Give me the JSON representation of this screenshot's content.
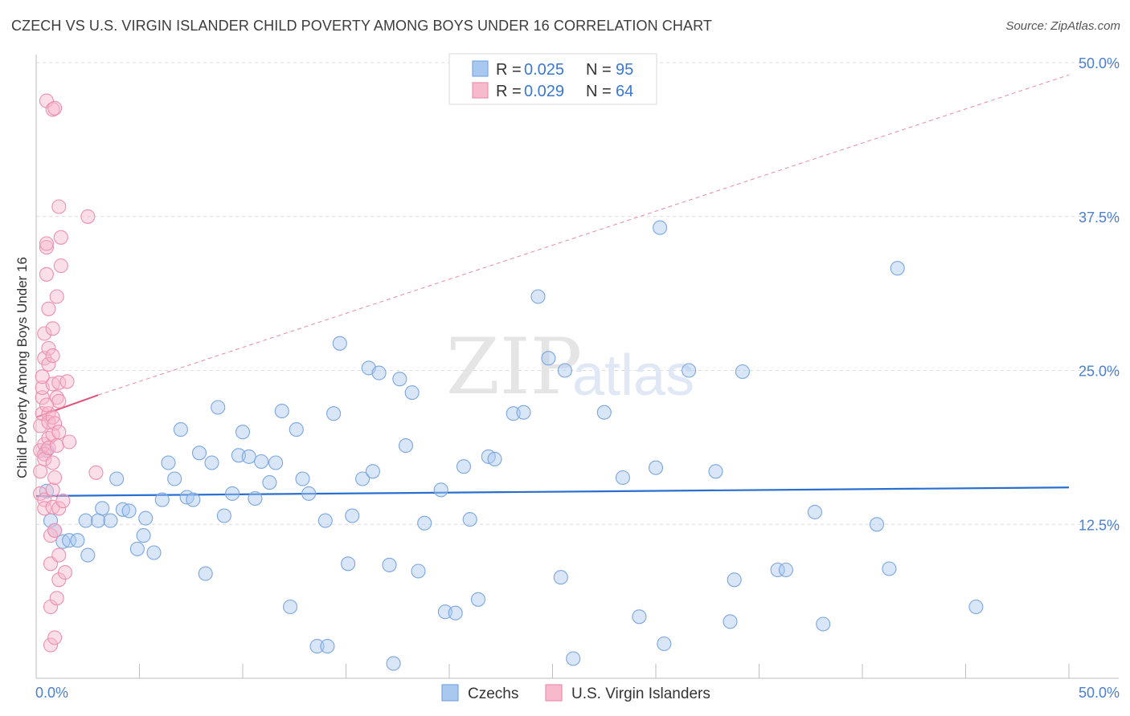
{
  "chart_data": {
    "type": "scatter",
    "title": "CZECH VS U.S. VIRGIN ISLANDER CHILD POVERTY AMONG BOYS UNDER 16 CORRELATION CHART",
    "source": "Source: ZipAtlas.com",
    "xlabel": "",
    "ylabel": "Child Poverty Among Boys Under 16",
    "xlim": [
      0,
      50
    ],
    "ylim": [
      0,
      50
    ],
    "x_tick_labels": [
      "0.0%",
      "50.0%"
    ],
    "y_ticks": [
      12.5,
      25.0,
      37.5,
      50.0
    ],
    "y_tick_labels": [
      "12.5%",
      "25.0%",
      "37.5%",
      "50.0%"
    ],
    "watermark": "ZIPatlas",
    "legend": {
      "r_label": "R =",
      "n_label": "N =",
      "entries": [
        {
          "name": "Czechs",
          "r": "0.025",
          "n": "95",
          "color": "#a9c8f0",
          "edge": "#7aa6e0",
          "line": "#2a6fd0"
        },
        {
          "name": "U.S. Virgin Islanders",
          "r": "0.029",
          "n": "64",
          "color": "#f7b9cc",
          "edge": "#ee8faf",
          "line": "#e0507a"
        }
      ]
    },
    "series": [
      {
        "name": "Czechs",
        "trend": {
          "x0": 0,
          "y0": 14.8,
          "x1": 50,
          "y1": 15.5
        },
        "points": [
          [
            0.5,
            18.5
          ],
          [
            0.5,
            15.2
          ],
          [
            0.7,
            12.8
          ],
          [
            0.9,
            12
          ],
          [
            1.3,
            11.1
          ],
          [
            1.6,
            11.2
          ],
          [
            2.0,
            11.2
          ],
          [
            2.5,
            10
          ],
          [
            2.4,
            12.8
          ],
          [
            3.0,
            12.8
          ],
          [
            3.2,
            13.8
          ],
          [
            3.6,
            12.8
          ],
          [
            3.9,
            16.2
          ],
          [
            4.2,
            13.7
          ],
          [
            4.5,
            13.6
          ],
          [
            4.9,
            10.5
          ],
          [
            5.2,
            11.6
          ],
          [
            5.3,
            13
          ],
          [
            5.7,
            10.2
          ],
          [
            6.1,
            14.5
          ],
          [
            6.4,
            17.5
          ],
          [
            6.7,
            16.2
          ],
          [
            7.0,
            20.2
          ],
          [
            7.3,
            14.7
          ],
          [
            7.6,
            14.5
          ],
          [
            7.9,
            18.3
          ],
          [
            8.2,
            8.5
          ],
          [
            8.5,
            17.5
          ],
          [
            8.8,
            22
          ],
          [
            9.1,
            13.2
          ],
          [
            9.5,
            15
          ],
          [
            9.8,
            18.1
          ],
          [
            10.0,
            20
          ],
          [
            10.3,
            18
          ],
          [
            10.6,
            14.6
          ],
          [
            10.9,
            17.6
          ],
          [
            11.3,
            15.9
          ],
          [
            11.6,
            17.5
          ],
          [
            11.9,
            21.7
          ],
          [
            12.3,
            5.8
          ],
          [
            12.6,
            20.2
          ],
          [
            12.9,
            16.2
          ],
          [
            13.2,
            15
          ],
          [
            13.6,
            2.6
          ],
          [
            14.0,
            12.8
          ],
          [
            14.1,
            2.6
          ],
          [
            14.4,
            21.5
          ],
          [
            14.7,
            27.2
          ],
          [
            15.1,
            9.3
          ],
          [
            15.3,
            13.2
          ],
          [
            15.8,
            16.2
          ],
          [
            16.1,
            25.2
          ],
          [
            16.3,
            16.8
          ],
          [
            16.6,
            24.8
          ],
          [
            17.1,
            9.2
          ],
          [
            17.3,
            1.2
          ],
          [
            17.6,
            24.3
          ],
          [
            17.9,
            18.9
          ],
          [
            18.2,
            23.2
          ],
          [
            18.5,
            8.7
          ],
          [
            18.8,
            12.6
          ],
          [
            19.6,
            15.3
          ],
          [
            19.8,
            5.4
          ],
          [
            20.3,
            5.3
          ],
          [
            20.7,
            17.2
          ],
          [
            21.0,
            12.9
          ],
          [
            21.4,
            6.4
          ],
          [
            21.9,
            18
          ],
          [
            22.2,
            17.8
          ],
          [
            23.1,
            21.5
          ],
          [
            23.6,
            21.6
          ],
          [
            24.3,
            31
          ],
          [
            24.8,
            26
          ],
          [
            25.4,
            8.2
          ],
          [
            25.6,
            25
          ],
          [
            26.0,
            1.6
          ],
          [
            27.5,
            21.6
          ],
          [
            28.4,
            16.3
          ],
          [
            29.2,
            5
          ],
          [
            30.0,
            17.1
          ],
          [
            30.2,
            36.6
          ],
          [
            30.4,
            2.8
          ],
          [
            31.6,
            25
          ],
          [
            32.9,
            16.8
          ],
          [
            33.6,
            4.6
          ],
          [
            33.8,
            8
          ],
          [
            34.2,
            24.9
          ],
          [
            35.9,
            8.8
          ],
          [
            36.3,
            8.8
          ],
          [
            37.7,
            13.5
          ],
          [
            38.1,
            4.4
          ],
          [
            40.7,
            12.5
          ],
          [
            41.3,
            8.9
          ],
          [
            41.7,
            33.3
          ],
          [
            45.5,
            5.8
          ]
        ]
      },
      {
        "name": "U.S. Virgin Islanders",
        "trend": {
          "x0": 0,
          "y0": 21.2,
          "x1": 3.0,
          "y1": 23
        },
        "trend_ext": {
          "x0": 3.0,
          "y0": 23,
          "x1": 50,
          "y1": 49
        },
        "points": [
          [
            0.2,
            15
          ],
          [
            0.2,
            16.8
          ],
          [
            0.2,
            18.5
          ],
          [
            0.2,
            20.5
          ],
          [
            0.3,
            21.5
          ],
          [
            0.3,
            22.8
          ],
          [
            0.3,
            23.6
          ],
          [
            0.4,
            19
          ],
          [
            0.4,
            18.2
          ],
          [
            0.4,
            17.8
          ],
          [
            0.4,
            14.5
          ],
          [
            0.4,
            13.8
          ],
          [
            0.4,
            26
          ],
          [
            0.4,
            28
          ],
          [
            0.5,
            32.8
          ],
          [
            0.5,
            35
          ],
          [
            0.5,
            35.3
          ],
          [
            0.5,
            46.9
          ],
          [
            0.6,
            25.5
          ],
          [
            0.6,
            21.5
          ],
          [
            0.6,
            20.8
          ],
          [
            0.6,
            19.5
          ],
          [
            0.6,
            18.7
          ],
          [
            0.6,
            26.8
          ],
          [
            0.6,
            30
          ],
          [
            0.7,
            11.6
          ],
          [
            0.7,
            9.3
          ],
          [
            0.7,
            5.8
          ],
          [
            0.7,
            2.7
          ],
          [
            0.8,
            13.9
          ],
          [
            0.8,
            15.3
          ],
          [
            0.8,
            17.5
          ],
          [
            0.8,
            19.8
          ],
          [
            0.8,
            21.2
          ],
          [
            0.8,
            23.9
          ],
          [
            0.8,
            26.2
          ],
          [
            0.8,
            28.4
          ],
          [
            0.8,
            46.2
          ],
          [
            0.9,
            46.3
          ],
          [
            0.9,
            20.7
          ],
          [
            0.9,
            16.3
          ],
          [
            0.9,
            12
          ],
          [
            0.9,
            3.3
          ],
          [
            1.0,
            6.5
          ],
          [
            1.0,
            31
          ],
          [
            1.0,
            22.8
          ],
          [
            1.0,
            18.9
          ],
          [
            1.1,
            38.3
          ],
          [
            1.1,
            24
          ],
          [
            1.1,
            22.5
          ],
          [
            1.1,
            20
          ],
          [
            1.1,
            13.8
          ],
          [
            1.1,
            10
          ],
          [
            1.1,
            8
          ],
          [
            1.2,
            33.5
          ],
          [
            1.2,
            35.8
          ],
          [
            1.3,
            14.4
          ],
          [
            1.4,
            8.6
          ],
          [
            1.5,
            24.1
          ],
          [
            1.6,
            19.2
          ],
          [
            2.5,
            37.5
          ],
          [
            2.9,
            16.7
          ],
          [
            0.3,
            24.5
          ],
          [
            0.5,
            22.2
          ]
        ]
      }
    ]
  }
}
